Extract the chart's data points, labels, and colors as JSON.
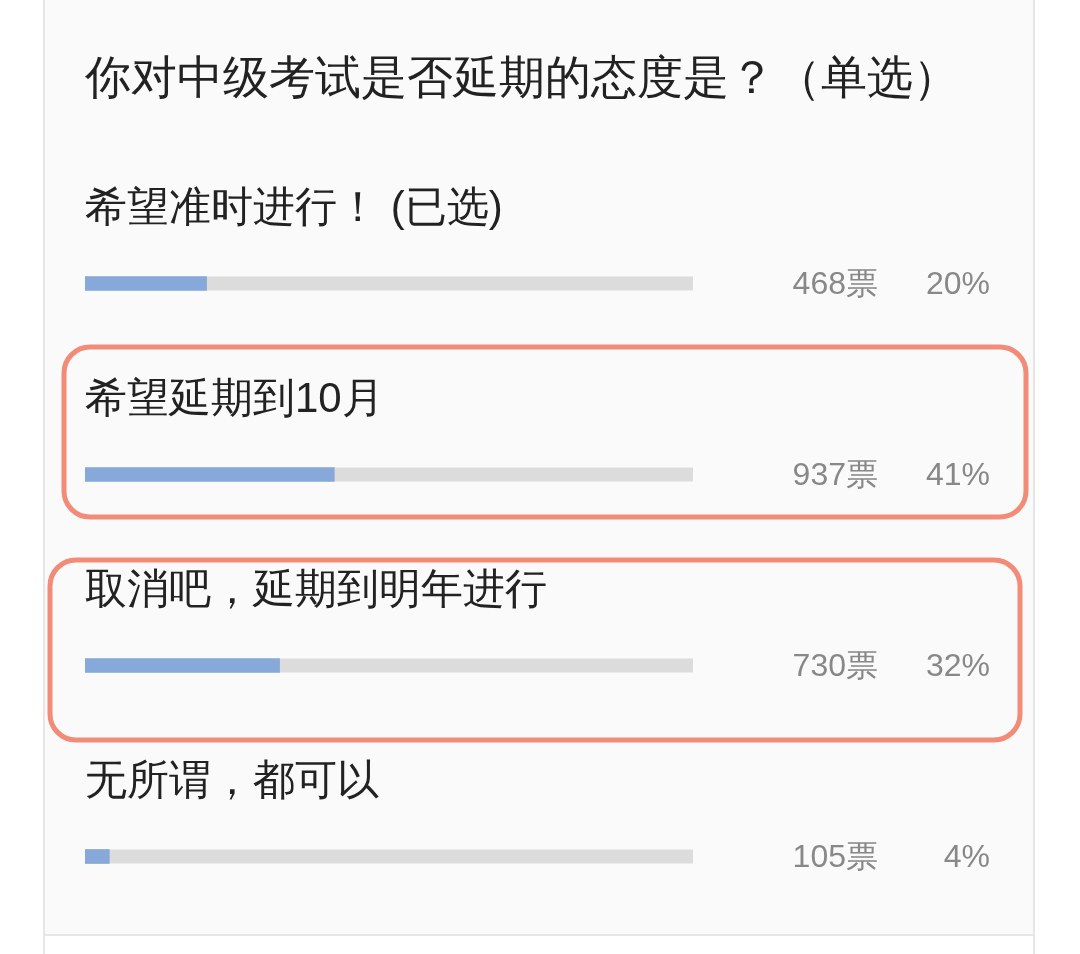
{
  "chart_data": {
    "type": "bar",
    "orientation": "horizontal",
    "title": "你对中级考试是否延期的态度是？（单选）",
    "categories": [
      "希望准时进行！ (已选)",
      "希望延期到10月",
      "取消吧，延期到明年进行",
      "无所谓，都可以"
    ],
    "values": [
      20,
      41,
      32,
      4
    ],
    "color": "#87a9d9",
    "value_labels": [
      "20%",
      "41%",
      "32%",
      "4%"
    ],
    "annotations": [
      "468票",
      "937票",
      "730票",
      "105票"
    ],
    "xlim": [
      0,
      100
    ],
    "tick_labels": "y",
    "grid": false,
    "legend": false
  }
}
